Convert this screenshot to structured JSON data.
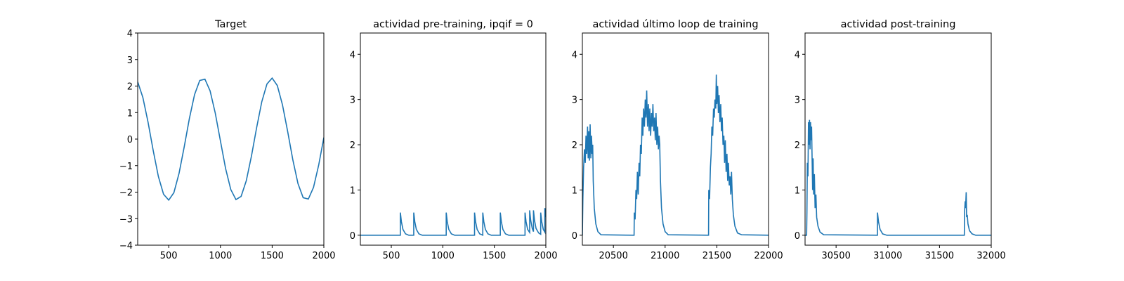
{
  "chart_data": [
    {
      "type": "line",
      "title": "Target",
      "color": "#1f77b4",
      "x": [
        200,
        250,
        300,
        350,
        400,
        450,
        500,
        550,
        600,
        650,
        700,
        750,
        800,
        850,
        900,
        950,
        1000,
        1050,
        1100,
        1150,
        1200,
        1250,
        1300,
        1350,
        1400,
        1450,
        1500,
        1550,
        1600,
        1650,
        1700,
        1750,
        1800,
        1850,
        1900,
        1950,
        2000
      ],
      "values": [
        2.16,
        1.57,
        0.64,
        -0.43,
        -1.41,
        -2.08,
        -2.3,
        -2.02,
        -1.29,
        -0.29,
        0.78,
        1.68,
        2.21,
        2.26,
        1.82,
        0.98,
        -0.07,
        -1.11,
        -1.9,
        -2.28,
        -2.16,
        -1.57,
        -0.64,
        0.43,
        1.41,
        2.08,
        2.3,
        2.02,
        1.29,
        0.29,
        -0.78,
        -1.68,
        -2.21,
        -2.26,
        -1.82,
        -0.98,
        0.06
      ],
      "xlim": [
        200,
        2000
      ],
      "xticks": [
        500,
        1000,
        1500,
        2000
      ],
      "ylim": [
        -4,
        4
      ],
      "yticks": [
        {
          "value": -4,
          "label": "−4"
        },
        {
          "value": -3,
          "label": "−3"
        },
        {
          "value": -2,
          "label": "−2"
        },
        {
          "value": -1,
          "label": "−1"
        },
        0,
        1,
        2,
        3,
        4
      ]
    },
    {
      "type": "line",
      "title": "actividad pre-training, ipqif = 0",
      "color": "#1f77b4",
      "x": [
        200,
        588,
        588,
        598,
        613,
        638,
        670,
        718,
        718,
        728,
        743,
        768,
        800,
        1033,
        1033,
        1043,
        1058,
        1083,
        1115,
        1308,
        1308,
        1318,
        1333,
        1358,
        1388,
        1388,
        1398,
        1413,
        1438,
        1470,
        1558,
        1558,
        1568,
        1583,
        1608,
        1640,
        1798,
        1798,
        1808,
        1823,
        1843,
        1843,
        1853,
        1868,
        1880,
        1880,
        1890,
        1905,
        1930,
        1950,
        1950,
        1960,
        1975,
        1990,
        1990,
        2000
      ],
      "values": [
        0,
        0,
        0.5,
        0.3,
        0.13,
        0.03,
        0,
        0,
        0.5,
        0.3,
        0.13,
        0.03,
        0,
        0,
        0.5,
        0.3,
        0.13,
        0.03,
        0,
        0,
        0.5,
        0.3,
        0.13,
        0.03,
        0,
        0.5,
        0.3,
        0.13,
        0.03,
        0,
        0,
        0.5,
        0.3,
        0.13,
        0.03,
        0,
        0,
        0.5,
        0.3,
        0.13,
        0.06,
        0.55,
        0.33,
        0.15,
        0.08,
        0.55,
        0.33,
        0.15,
        0.05,
        0.02,
        0.5,
        0.3,
        0.13,
        0.07,
        0.6,
        0.4
      ],
      "xlim": [
        200,
        2000
      ],
      "xticks": [
        500,
        1000,
        1500,
        2000
      ],
      "ylim": [
        -0.22,
        4.47
      ],
      "yticks": [
        0,
        1,
        2,
        3,
        4
      ]
    },
    {
      "type": "line",
      "title": "actividad último loop de training",
      "color": "#1f77b4",
      "x": [
        20200,
        20205,
        20212,
        20220,
        20228,
        20235,
        20242,
        20250,
        20256,
        20262,
        20268,
        20275,
        20282,
        20288,
        20295,
        20300,
        20305,
        20315,
        20330,
        20350,
        20380,
        20700,
        20702,
        20710,
        20718,
        20725,
        20732,
        20740,
        20748,
        20755,
        20762,
        20770,
        20778,
        20785,
        20792,
        20800,
        20808,
        20815,
        20822,
        20830,
        20838,
        20845,
        20852,
        20860,
        20868,
        20875,
        20882,
        20890,
        20898,
        20905,
        20912,
        20920,
        20928,
        20935,
        20942,
        20948,
        20955,
        20965,
        20980,
        21000,
        21030,
        21420,
        21422,
        21430,
        21438,
        21445,
        21452,
        21460,
        21468,
        21475,
        21482,
        21490,
        21495,
        21500,
        21508,
        21515,
        21522,
        21530,
        21538,
        21545,
        21552,
        21560,
        21568,
        21575,
        21582,
        21590,
        21598,
        21605,
        21612,
        21620,
        21628,
        21635,
        21642,
        21650,
        21660,
        21675,
        21700,
        21740,
        22000
      ],
      "values": [
        0,
        0.8,
        1.5,
        1.9,
        1.6,
        2.2,
        1.8,
        2.4,
        1.7,
        2.3,
        1.65,
        2.45,
        1.7,
        2.2,
        1.8,
        2.0,
        1.2,
        0.6,
        0.25,
        0.08,
        0.01,
        0,
        0.5,
        0.35,
        1.0,
        0.8,
        1.4,
        0.9,
        1.6,
        1.3,
        2.0,
        1.8,
        2.6,
        2.2,
        2.8,
        2.4,
        3.0,
        2.6,
        3.2,
        2.4,
        2.9,
        2.3,
        2.8,
        2.2,
        2.7,
        2.4,
        2.9,
        2.3,
        2.6,
        2.1,
        2.7,
        2.0,
        2.4,
        1.9,
        2.2,
        2.0,
        1.2,
        0.6,
        0.25,
        0.08,
        0.01,
        0,
        1.0,
        0.8,
        1.5,
        1.8,
        2.4,
        2.2,
        2.8,
        2.6,
        3.0,
        2.8,
        3.55,
        2.9,
        3.3,
        2.7,
        3.1,
        2.5,
        2.9,
        2.3,
        2.6,
        2.0,
        2.2,
        1.6,
        2.1,
        1.4,
        1.8,
        1.2,
        1.6,
        1.1,
        1.3,
        0.9,
        1.4,
        0.8,
        0.45,
        0.2,
        0.05,
        0.01,
        0
      ],
      "xlim": [
        20200,
        22000
      ],
      "xticks": [
        20500,
        21000,
        21500,
        22000
      ],
      "ylim": [
        -0.22,
        4.47
      ],
      "yticks": [
        0,
        1,
        2,
        3,
        4
      ]
    },
    {
      "type": "line",
      "title": "actividad post-training",
      "color": "#1f77b4",
      "x": [
        30200,
        30215,
        30218,
        30222,
        30228,
        30233,
        30238,
        30243,
        30248,
        30253,
        30258,
        30263,
        30268,
        30273,
        30278,
        30283,
        30290,
        30297,
        30305,
        30312,
        30325,
        30345,
        30380,
        30900,
        30900,
        30910,
        30925,
        30950,
        30990,
        31740,
        31742,
        31748,
        31752,
        31758,
        31762,
        31768,
        31775,
        31790,
        31815,
        31850,
        32000
      ],
      "values": [
        0,
        0,
        0.5,
        1.6,
        1.3,
        2.5,
        2.0,
        2.55,
        1.9,
        2.5,
        2.1,
        2.4,
        1.7,
        1.0,
        1.7,
        0.9,
        1.35,
        0.6,
        0.9,
        0.4,
        0.2,
        0.07,
        0.01,
        0,
        0.5,
        0.3,
        0.13,
        0.03,
        0,
        0,
        0.5,
        0.75,
        0.6,
        0.95,
        0.4,
        0.45,
        0.25,
        0.1,
        0.03,
        0,
        0
      ],
      "xlim": [
        30200,
        32000
      ],
      "xticks": [
        30500,
        31000,
        31500,
        32000
      ],
      "ylim": [
        -0.22,
        4.47
      ],
      "yticks": [
        0,
        1,
        2,
        3,
        4
      ]
    }
  ]
}
